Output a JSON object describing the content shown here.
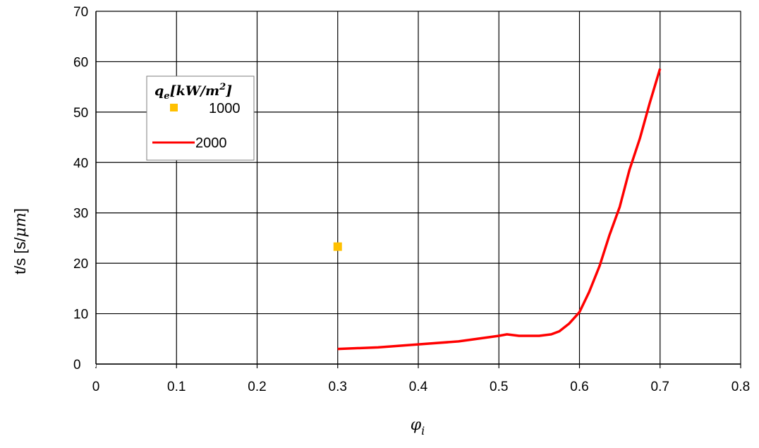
{
  "chart_data": {
    "type": "line",
    "xlabel": "φ",
    "xlabel_sub": "i",
    "ylabel_prefix": "t/s [s/",
    "ylabel_math": "μm",
    "ylabel_suffix": "]",
    "xlim": [
      0,
      0.8
    ],
    "ylim": [
      0,
      70
    ],
    "x_ticks": [
      0,
      0.1,
      0.2,
      0.3,
      0.4,
      0.5,
      0.6,
      0.7,
      0.8
    ],
    "x_tick_labels": [
      "0",
      "0.1",
      "0.2",
      "0.3",
      "0.4",
      "0.5",
      "0.6",
      "0.7",
      "0.8"
    ],
    "y_ticks": [
      0,
      10,
      20,
      30,
      40,
      50,
      60,
      70
    ],
    "y_tick_labels": [
      "0",
      "10",
      "20",
      "30",
      "40",
      "50",
      "60",
      "70"
    ],
    "grid": true,
    "legend": {
      "title_base": "q",
      "title_sub": "e",
      "title_unit_pre": "[kW/m",
      "title_sup": "2",
      "title_unit_post": "]",
      "placement": "top-left"
    },
    "series": [
      {
        "name": "1000",
        "style": "marker",
        "color": "#FFC000",
        "points": [
          [
            0.3,
            23.3
          ]
        ]
      },
      {
        "name": "2000",
        "style": "line",
        "color": "#FF0000",
        "points": [
          [
            0.3,
            3.0
          ],
          [
            0.35,
            3.3
          ],
          [
            0.4,
            3.9
          ],
          [
            0.45,
            4.5
          ],
          [
            0.5,
            5.6
          ],
          [
            0.51,
            5.9
          ],
          [
            0.525,
            5.6
          ],
          [
            0.55,
            5.6
          ],
          [
            0.565,
            5.9
          ],
          [
            0.575,
            6.5
          ],
          [
            0.587,
            8.0
          ],
          [
            0.6,
            10.3
          ],
          [
            0.612,
            14.3
          ],
          [
            0.625,
            19.5
          ],
          [
            0.637,
            25.5
          ],
          [
            0.65,
            31.2
          ],
          [
            0.662,
            38.5
          ],
          [
            0.675,
            44.8
          ],
          [
            0.687,
            51.7
          ],
          [
            0.7,
            58.6
          ]
        ]
      }
    ]
  }
}
